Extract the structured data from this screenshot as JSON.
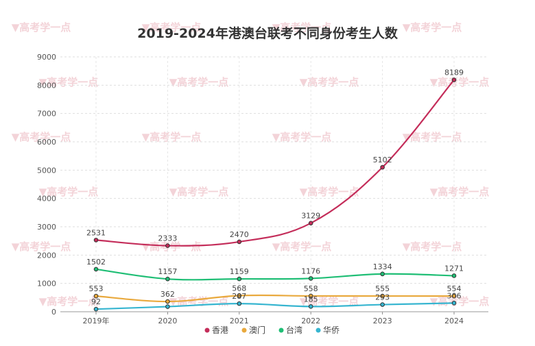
{
  "chart_data": {
    "type": "line",
    "title": "2019-2024年港澳台联考不同身份考生人数",
    "categories": [
      "2019年",
      "2020",
      "2021",
      "2022",
      "2023",
      "2024"
    ],
    "ylim": [
      0,
      9000
    ],
    "yticks": [
      0,
      1000,
      2000,
      3000,
      4000,
      5000,
      6000,
      7000,
      8000,
      9000
    ],
    "grid": true,
    "legend_position": "bottom",
    "series": [
      {
        "name": "香港",
        "color": "#c42d5a",
        "values": [
          2531,
          2333,
          2470,
          3129,
          5102,
          8189
        ]
      },
      {
        "name": "澳门",
        "color": "#e9a93d",
        "values": [
          553,
          362,
          568,
          558,
          555,
          554
        ]
      },
      {
        "name": "台湾",
        "color": "#1fbe75",
        "values": [
          1502,
          1157,
          1159,
          1176,
          1334,
          1271
        ]
      },
      {
        "name": "华侨",
        "color": "#36b5d0",
        "values": [
          92,
          181,
          287,
          185,
          253,
          306
        ]
      }
    ],
    "data_labels": [
      [
        "2531",
        "2333",
        "2470",
        "3129",
        "5102",
        "8189"
      ],
      [
        "553",
        "362",
        "568",
        "558",
        "555",
        "554"
      ],
      [
        "1502",
        "1157",
        "1159",
        "1176",
        "1334",
        "1271"
      ],
      [
        "92",
        "",
        "287",
        "185",
        "253",
        "306"
      ]
    ]
  },
  "watermark": {
    "text": "▼高考学一点"
  }
}
